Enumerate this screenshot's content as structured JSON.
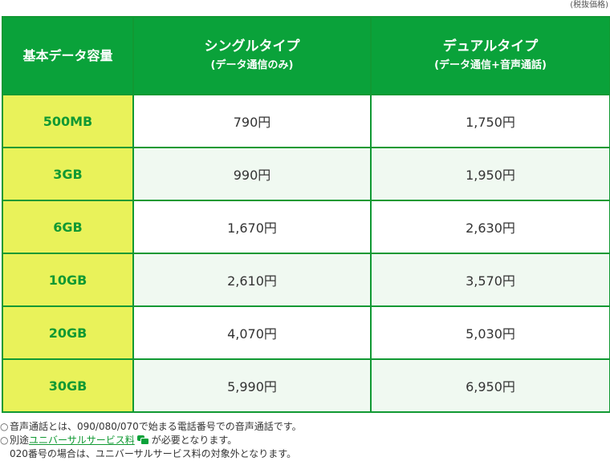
{
  "tax_note": "(税抜価格)",
  "table": {
    "header": {
      "capacity": "基本データ容量",
      "single_title": "シングルタイプ",
      "single_sub": "(データ通信のみ)",
      "dual_title": "デュアルタイプ",
      "dual_sub": "(データ通信+音声通話)"
    },
    "rows": [
      {
        "capacity": "500MB",
        "single": "790円",
        "dual": "1,750円"
      },
      {
        "capacity": "3GB",
        "single": "990円",
        "dual": "1,950円"
      },
      {
        "capacity": "6GB",
        "single": "1,670円",
        "dual": "2,630円"
      },
      {
        "capacity": "10GB",
        "single": "2,610円",
        "dual": "3,570円"
      },
      {
        "capacity": "20GB",
        "single": "4,070円",
        "dual": "5,030円"
      },
      {
        "capacity": "30GB",
        "single": "5,990円",
        "dual": "6,950円"
      }
    ]
  },
  "notes": {
    "bullet": "○",
    "note1": "音声通話とは、090/080/070で始まる電話番号での音声通話です。",
    "note2_prefix": "別途",
    "note2_link": "ユニバーサルサービス料",
    "note2_suffix": "が必要となります。",
    "note3": "020番号の場合は、ユニバーサルサービス料の対象外となります。",
    "icons": {
      "link_icon": "external-window-icon"
    },
    "colors": {
      "accent": "#0aa23a",
      "capacity_bg": "#e9f25a"
    }
  }
}
